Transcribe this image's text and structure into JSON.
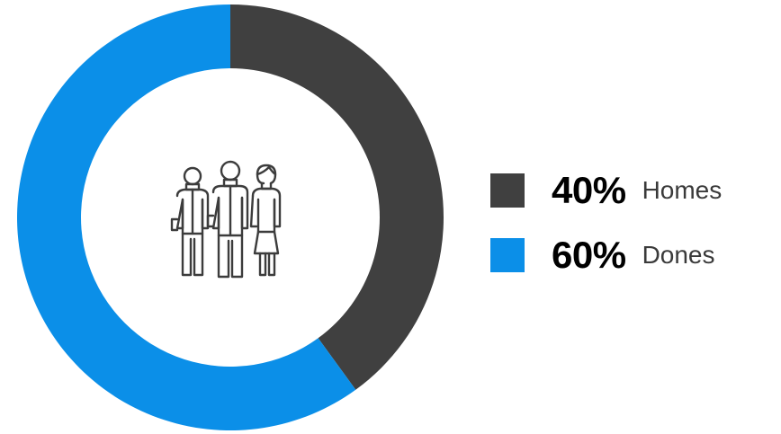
{
  "chart_data": {
    "type": "pie",
    "donut": true,
    "start": "top",
    "direction": "clockwise",
    "categories": [
      "Homes",
      "Dones"
    ],
    "values": [
      40,
      60
    ],
    "labels": [
      "40%",
      "60%"
    ],
    "colors": [
      "#404040",
      "#0b8fe8"
    ],
    "legend_position": "right"
  },
  "center_icon": "people-group-icon"
}
